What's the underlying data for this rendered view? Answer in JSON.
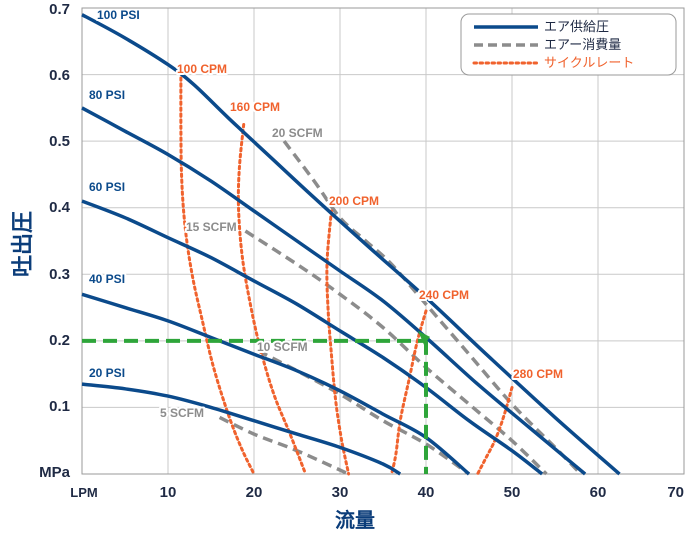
{
  "chart_data": {
    "type": "line",
    "title": "",
    "xlabel": "流量",
    "ylabel": "吐出圧",
    "x_unit": "LPM",
    "y_unit": "MPa",
    "xlim": [
      0,
      70
    ],
    "ylim": [
      0,
      0.7
    ],
    "xticks": [
      "10",
      "20",
      "30",
      "40",
      "50",
      "60",
      "70"
    ],
    "yticks": [
      "0.1",
      "0.2",
      "0.3",
      "0.4",
      "0.5",
      "0.6",
      "0.7"
    ],
    "grid": true,
    "legend_position": "top-right",
    "legend": [
      {
        "label": "エア供給圧",
        "style": "solid",
        "color": "#0b4a8b"
      },
      {
        "label": "エアー消費量",
        "style": "dashed",
        "color": "#8c8c8c"
      },
      {
        "label": "サイクルレート",
        "style": "dotted",
        "color": "#f0622d"
      }
    ],
    "air_supply_pressure": [
      {
        "label": "100 PSI",
        "points": [
          [
            0,
            0.69
          ],
          [
            5,
            0.655
          ],
          [
            10,
            0.615
          ],
          [
            13,
            0.585
          ],
          [
            17,
            0.535
          ],
          [
            22,
            0.475
          ],
          [
            27,
            0.415
          ],
          [
            33,
            0.345
          ],
          [
            40,
            0.265
          ],
          [
            47,
            0.18
          ],
          [
            55,
            0.085
          ],
          [
            62.5,
            0.0
          ]
        ]
      },
      {
        "label": "80 PSI",
        "points": [
          [
            0,
            0.55
          ],
          [
            5,
            0.515
          ],
          [
            10,
            0.48
          ],
          [
            15,
            0.44
          ],
          [
            20,
            0.395
          ],
          [
            25,
            0.35
          ],
          [
            30,
            0.305
          ],
          [
            35,
            0.26
          ],
          [
            40,
            0.205
          ],
          [
            46,
            0.135
          ],
          [
            52,
            0.07
          ],
          [
            58.5,
            0.0
          ]
        ]
      },
      {
        "label": "60 PSI",
        "points": [
          [
            0,
            0.41
          ],
          [
            5,
            0.385
          ],
          [
            10,
            0.355
          ],
          [
            15,
            0.325
          ],
          [
            20,
            0.29
          ],
          [
            25,
            0.255
          ],
          [
            30,
            0.215
          ],
          [
            35,
            0.175
          ],
          [
            40,
            0.13
          ],
          [
            45,
            0.08
          ],
          [
            50,
            0.035
          ],
          [
            53.5,
            0.0
          ]
        ]
      },
      {
        "label": "40 PSI",
        "points": [
          [
            0,
            0.27
          ],
          [
            5,
            0.25
          ],
          [
            10,
            0.23
          ],
          [
            15,
            0.205
          ],
          [
            20,
            0.18
          ],
          [
            25,
            0.155
          ],
          [
            30,
            0.125
          ],
          [
            35,
            0.09
          ],
          [
            40,
            0.055
          ],
          [
            45,
            0.0
          ]
        ]
      },
      {
        "label": "20 PSI",
        "points": [
          [
            0,
            0.135
          ],
          [
            5,
            0.128
          ],
          [
            10,
            0.117
          ],
          [
            15,
            0.1
          ],
          [
            20,
            0.08
          ],
          [
            25,
            0.06
          ],
          [
            30,
            0.04
          ],
          [
            35,
            0.015
          ],
          [
            37,
            0.0
          ]
        ]
      }
    ],
    "air_consumption": [
      {
        "label": "5 SCFM",
        "points": [
          [
            16,
            0.085
          ],
          [
            20,
            0.06
          ],
          [
            25,
            0.035
          ],
          [
            31,
            0.0
          ]
        ]
      },
      {
        "label": "10 SCFM",
        "points": [
          [
            20.5,
            0.185
          ],
          [
            25,
            0.155
          ],
          [
            30,
            0.12
          ],
          [
            35,
            0.08
          ],
          [
            40,
            0.045
          ],
          [
            45,
            0.0
          ]
        ]
      },
      {
        "label": "15 SCFM",
        "points": [
          [
            19,
            0.365
          ],
          [
            25,
            0.315
          ],
          [
            30,
            0.27
          ],
          [
            35,
            0.22
          ],
          [
            40,
            0.16
          ],
          [
            45,
            0.105
          ],
          [
            50,
            0.05
          ],
          [
            54,
            0.0
          ]
        ]
      },
      {
        "label": "20 SCFM",
        "points": [
          [
            23.5,
            0.5
          ],
          [
            27,
            0.44
          ],
          [
            30,
            0.385
          ],
          [
            33,
            0.35
          ],
          [
            36,
            0.315
          ],
          [
            40,
            0.255
          ],
          [
            45,
            0.18
          ],
          [
            50,
            0.105
          ],
          [
            55,
            0.04
          ],
          [
            58,
            0.0
          ]
        ]
      }
    ],
    "cycle_rate": [
      {
        "label": "100 CPM",
        "points": [
          [
            11.5,
            0.595
          ],
          [
            11.5,
            0.52
          ],
          [
            11.6,
            0.44
          ],
          [
            12,
            0.37
          ],
          [
            12.8,
            0.3
          ],
          [
            14,
            0.23
          ],
          [
            15.3,
            0.16
          ],
          [
            17,
            0.09
          ],
          [
            18.5,
            0.04
          ],
          [
            20,
            0.0
          ]
        ]
      },
      {
        "label": "160 CPM",
        "points": [
          [
            18.8,
            0.525
          ],
          [
            18.3,
            0.46
          ],
          [
            18.2,
            0.4
          ],
          [
            18.6,
            0.33
          ],
          [
            19.5,
            0.26
          ],
          [
            20.7,
            0.19
          ],
          [
            22.3,
            0.12
          ],
          [
            24.2,
            0.06
          ],
          [
            26,
            0.0
          ]
        ]
      },
      {
        "label": "200 CPM",
        "points": [
          [
            29,
            0.395
          ],
          [
            28.5,
            0.32
          ],
          [
            28.6,
            0.25
          ],
          [
            29,
            0.18
          ],
          [
            29.5,
            0.11
          ],
          [
            30.2,
            0.05
          ],
          [
            31,
            0.0
          ]
        ]
      },
      {
        "label": "240 CPM",
        "points": [
          [
            40,
            0.245
          ],
          [
            39,
            0.2
          ],
          [
            38,
            0.14
          ],
          [
            37,
            0.08
          ],
          [
            36.5,
            0.03
          ],
          [
            36,
            0.0
          ]
        ]
      },
      {
        "label": "280 CPM",
        "points": [
          [
            50,
            0.13
          ],
          [
            49,
            0.085
          ],
          [
            48,
            0.05
          ],
          [
            46.8,
            0.02
          ],
          [
            46,
            0.0
          ]
        ]
      }
    ],
    "annotation": {
      "x": 40,
      "y": 0.2,
      "color": "#2ea53a"
    }
  }
}
